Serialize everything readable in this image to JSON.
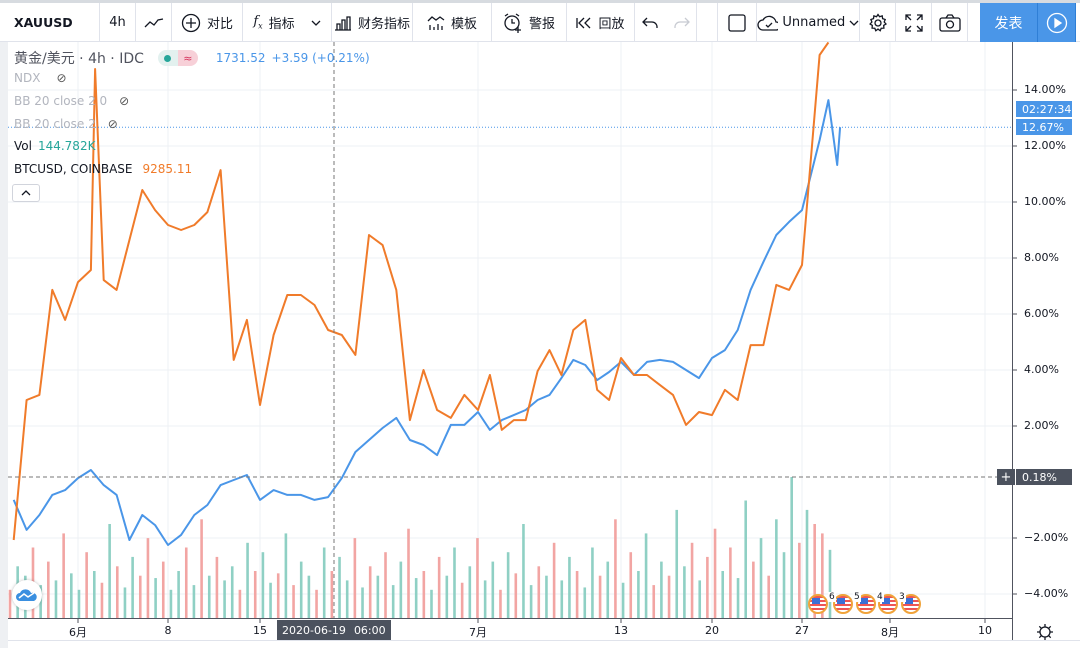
{
  "toolbar": {
    "symbol": "XAUUSD",
    "interval": "4h",
    "compare": "对比",
    "indicators": "指标",
    "financials": "财务指标",
    "templates": "模板",
    "alert": "警报",
    "replay": "回放",
    "layout_name": "Unnamed",
    "publish": "发表",
    "icons": [
      "line-chart-icon",
      "plus-circle-icon",
      "fx-icon",
      "chevron-down-icon",
      "bar-chart-icon",
      "template-icon",
      "alarm-clock-icon",
      "replay-icon",
      "undo-icon",
      "redo-icon",
      "square-icon",
      "cloud-check-icon",
      "gear-icon",
      "fullscreen-icon",
      "camera-icon",
      "play-icon"
    ]
  },
  "legend": {
    "main_title": "黄金/美元 · 4h · IDC",
    "price": "1731.52",
    "change": "+3.59 (+0.21%)",
    "ndx": "NDX",
    "bb1": "BB 20 close 2 0",
    "bb2": "BB 20 close 2",
    "vol_label": "Vol",
    "vol_value": "144.782K",
    "btc_label": "BTCUSD, COINBASE",
    "btc_value": "9285.11"
  },
  "crosshair": {
    "date": "2020-06-19",
    "time": "06:00",
    "value_label": "0.18%",
    "value": 0.18
  },
  "last": {
    "value_label": "12.67%",
    "countdown": "02:27:34"
  },
  "colors": {
    "xauusd": "#4a96e8",
    "btcusd": "#f07b2a",
    "vol_up": "#8fd0c4",
    "vol_down": "#f2a5a3",
    "accent": "#4a96e8"
  },
  "events": [
    "6",
    "5",
    "4",
    "3"
  ],
  "chart_data": {
    "type": "line",
    "y_unit": "%",
    "ylim": [
      -4.8,
      15.7
    ],
    "yticks": [
      "14.00%",
      "12.00%",
      "10.00%",
      "8.00%",
      "6.00%",
      "4.00%",
      "2.00%",
      "−2.00%",
      "−4.00%"
    ],
    "ytick_values": [
      14,
      12,
      10,
      8,
      6,
      4,
      2,
      -2,
      -4
    ],
    "xticks": [
      "6月",
      "8",
      "15",
      "7月",
      "13",
      "20",
      "27",
      "8月",
      "10"
    ],
    "xtick_dates": [
      "2020-06-01",
      "2020-06-08",
      "2020-06-15",
      "2020-07-01",
      "2020-07-13",
      "2020-07-20",
      "2020-07-27",
      "2020-08-01",
      "2020-08-10"
    ],
    "grid": true,
    "series": [
      {
        "name": "XAUUSD",
        "color": "#4a96e8",
        "points": [
          [
            "2020-05-27",
            -0.64
          ],
          [
            "2020-05-28",
            -1.71
          ],
          [
            "2020-05-29",
            -1.18
          ],
          [
            "2020-05-30",
            -0.46
          ],
          [
            "2020-05-31",
            -0.29
          ],
          [
            "2020-06-01",
            0.14
          ],
          [
            "2020-06-02",
            0.43
          ],
          [
            "2020-06-03",
            -0.11
          ],
          [
            "2020-06-04",
            -0.46
          ],
          [
            "2020-06-05",
            -2.07
          ],
          [
            "2020-06-06",
            -1.18
          ],
          [
            "2020-06-07",
            -1.54
          ],
          [
            "2020-06-08",
            -2.25
          ],
          [
            "2020-06-09",
            -1.89
          ],
          [
            "2020-06-10",
            -1.18
          ],
          [
            "2020-06-11",
            -0.82
          ],
          [
            "2020-06-12",
            -0.11
          ],
          [
            "2020-06-13",
            0.07
          ],
          [
            "2020-06-14",
            0.25
          ],
          [
            "2020-06-15",
            -0.64
          ],
          [
            "2020-06-16",
            -0.29
          ],
          [
            "2020-06-17",
            -0.46
          ],
          [
            "2020-06-18",
            -0.46
          ],
          [
            "2020-06-19",
            -0.64
          ],
          [
            "2020-06-20",
            -0.54
          ],
          [
            "2020-06-21",
            0.14
          ],
          [
            "2020-06-22",
            1.07
          ],
          [
            "2020-06-23",
            1.5
          ],
          [
            "2020-06-24",
            1.93
          ],
          [
            "2020-06-25",
            2.29
          ],
          [
            "2020-06-26",
            1.5
          ],
          [
            "2020-06-27",
            1.32
          ],
          [
            "2020-06-28",
            0.96
          ],
          [
            "2020-06-29",
            2.04
          ],
          [
            "2020-06-30",
            2.04
          ],
          [
            "2020-07-01",
            2.5
          ],
          [
            "2020-07-02",
            1.86
          ],
          [
            "2020-07-03",
            2.21
          ],
          [
            "2020-07-04",
            2.39
          ],
          [
            "2020-07-05",
            2.57
          ],
          [
            "2020-07-06",
            2.93
          ],
          [
            "2020-07-07",
            3.11
          ],
          [
            "2020-07-08",
            3.71
          ],
          [
            "2020-07-09",
            4.36
          ],
          [
            "2020-07-10",
            4.18
          ],
          [
            "2020-07-11",
            3.64
          ],
          [
            "2020-07-12",
            3.93
          ],
          [
            "2020-07-13",
            4.29
          ],
          [
            "2020-07-14",
            3.82
          ],
          [
            "2020-07-15",
            4.29
          ],
          [
            "2020-07-16",
            4.36
          ],
          [
            "2020-07-17",
            4.29
          ],
          [
            "2020-07-18",
            4.0
          ],
          [
            "2020-07-19",
            3.71
          ],
          [
            "2020-07-20",
            4.43
          ],
          [
            "2020-07-21",
            4.71
          ],
          [
            "2020-07-22",
            5.43
          ],
          [
            "2020-07-23",
            6.86
          ],
          [
            "2020-07-24",
            7.86
          ],
          [
            "2020-07-25",
            8.82
          ],
          [
            "2020-07-26",
            9.29
          ],
          [
            "2020-07-27",
            9.71
          ],
          [
            "2020-07-28 00:00",
            12.21
          ],
          [
            "2020-07-28 12:00",
            13.64
          ],
          [
            "2020-07-29 00:00",
            11.32
          ],
          [
            "2020-07-29 04:00",
            12.67
          ]
        ]
      },
      {
        "name": "BTCUSD, COINBASE",
        "color": "#f07b2a",
        "points": [
          [
            "2020-05-27",
            -2.07
          ],
          [
            "2020-05-28",
            2.93
          ],
          [
            "2020-05-29",
            3.11
          ],
          [
            "2020-05-30",
            6.86
          ],
          [
            "2020-05-31",
            5.79
          ],
          [
            "2020-06-01",
            7.14
          ],
          [
            "2020-06-02 00:00",
            7.57
          ],
          [
            "2020-06-02 08:00",
            14.75
          ],
          [
            "2020-06-03",
            7.21
          ],
          [
            "2020-06-04",
            6.86
          ],
          [
            "2020-06-05",
            8.64
          ],
          [
            "2020-06-06",
            10.43
          ],
          [
            "2020-06-07",
            9.71
          ],
          [
            "2020-06-08",
            9.18
          ],
          [
            "2020-06-09",
            9.0
          ],
          [
            "2020-06-10",
            9.18
          ],
          [
            "2020-06-11",
            9.64
          ],
          [
            "2020-06-12",
            11.14
          ],
          [
            "2020-06-13",
            4.36
          ],
          [
            "2020-06-14",
            5.79
          ],
          [
            "2020-06-15",
            2.75
          ],
          [
            "2020-06-16",
            5.25
          ],
          [
            "2020-06-17",
            6.68
          ],
          [
            "2020-06-18",
            6.68
          ],
          [
            "2020-06-19",
            6.32
          ],
          [
            "2020-06-20",
            5.43
          ],
          [
            "2020-06-21",
            5.25
          ],
          [
            "2020-06-22",
            4.54
          ],
          [
            "2020-06-23",
            8.82
          ],
          [
            "2020-06-24",
            8.46
          ],
          [
            "2020-06-25",
            6.86
          ],
          [
            "2020-06-26",
            2.21
          ],
          [
            "2020-06-27",
            4.0
          ],
          [
            "2020-06-28",
            2.57
          ],
          [
            "2020-06-29",
            2.29
          ],
          [
            "2020-06-30",
            3.11
          ],
          [
            "2020-07-01",
            2.57
          ],
          [
            "2020-07-02",
            3.82
          ],
          [
            "2020-07-03",
            1.86
          ],
          [
            "2020-07-04",
            2.21
          ],
          [
            "2020-07-05",
            2.21
          ],
          [
            "2020-07-06",
            3.96
          ],
          [
            "2020-07-07",
            4.71
          ],
          [
            "2020-07-08",
            3.82
          ],
          [
            "2020-07-09",
            5.43
          ],
          [
            "2020-07-10",
            5.79
          ],
          [
            "2020-07-11",
            3.29
          ],
          [
            "2020-07-12",
            2.93
          ],
          [
            "2020-07-13",
            4.43
          ],
          [
            "2020-07-14",
            3.82
          ],
          [
            "2020-07-15",
            3.82
          ],
          [
            "2020-07-16",
            3.46
          ],
          [
            "2020-07-17",
            3.11
          ],
          [
            "2020-07-18",
            2.04
          ],
          [
            "2020-07-19",
            2.5
          ],
          [
            "2020-07-20",
            2.39
          ],
          [
            "2020-07-21",
            3.29
          ],
          [
            "2020-07-22",
            2.93
          ],
          [
            "2020-07-23",
            4.89
          ],
          [
            "2020-07-24",
            4.89
          ],
          [
            "2020-07-25",
            7.04
          ],
          [
            "2020-07-26",
            6.86
          ],
          [
            "2020-07-27",
            7.75
          ],
          [
            "2020-07-28 00:00",
            15.25
          ],
          [
            "2020-07-28 12:00",
            15.7
          ]
        ]
      }
    ],
    "volume_unit": "K",
    "volume": [
      60,
      110,
      90,
      150,
      70,
      120,
      80,
      180,
      95,
      60,
      140,
      100,
      75,
      200,
      110,
      65,
      130,
      90,
      170,
      85,
      120,
      60,
      100,
      150,
      70,
      210,
      90,
      130,
      80,
      110,
      60,
      160,
      100,
      140,
      75,
      95,
      180,
      70,
      120,
      90,
      60,
      150,
      100,
      130,
      80,
      170,
      65,
      110,
      90,
      140,
      70,
      120,
      190,
      85,
      100,
      60,
      130,
      90,
      150,
      75,
      110,
      170,
      80,
      120,
      60,
      140,
      95,
      200,
      70,
      110,
      90,
      160,
      80,
      130,
      100,
      65,
      150,
      90,
      120,
      210,
      75,
      140,
      100,
      180,
      70,
      120,
      90,
      230,
      110,
      160,
      80,
      130,
      190,
      100,
      150,
      85,
      250,
      120,
      170,
      90,
      210,
      140,
      300,
      160,
      230,
      200,
      180,
      145
    ],
    "volume_up": [
      0,
      1,
      1,
      0,
      1,
      0,
      1,
      0,
      1,
      1,
      0,
      1,
      0,
      1,
      0,
      1,
      1,
      0,
      0,
      1,
      0,
      1,
      1,
      0,
      1,
      0,
      1,
      0,
      1,
      1,
      0,
      1,
      0,
      1,
      1,
      0,
      1,
      0,
      1,
      1,
      0,
      1,
      0,
      1,
      1,
      0,
      1,
      0,
      1,
      0,
      1,
      1,
      0,
      1,
      0,
      1,
      0,
      1,
      1,
      0,
      1,
      0,
      1,
      1,
      0,
      1,
      0,
      1,
      1,
      0,
      1,
      0,
      1,
      1,
      0,
      1,
      1,
      0,
      1,
      0,
      1,
      0,
      1,
      1,
      0,
      1,
      0,
      1,
      1,
      0,
      1,
      0,
      0,
      1,
      0,
      1,
      1,
      0,
      1,
      0,
      1,
      1,
      1,
      0,
      1,
      0,
      0,
      1
    ]
  }
}
